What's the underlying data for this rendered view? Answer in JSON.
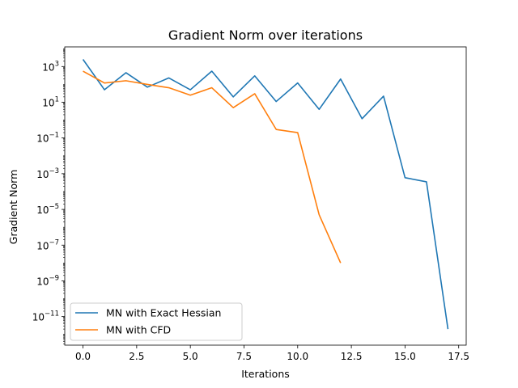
{
  "chart_data": {
    "type": "line",
    "title": "Gradient Norm  over iterations",
    "xlabel": "Iterations",
    "ylabel": "Gradient Norm",
    "yscale": "log",
    "xlim": [
      -0.85,
      17.85
    ],
    "ylim_log10": [
      -12.6,
      4.1
    ],
    "xticks": [
      0.0,
      2.5,
      5.0,
      7.5,
      10.0,
      12.5,
      15.0,
      17.5
    ],
    "xtick_labels": [
      "0.0",
      "2.5",
      "5.0",
      "7.5",
      "10.0",
      "12.5",
      "15.0",
      "17.5"
    ],
    "ytick_exponents": [
      3,
      1,
      -1,
      -3,
      -5,
      -7,
      -9,
      -11
    ],
    "ytick_base": "10",
    "grid": false,
    "legend_position": "lower-left",
    "series": [
      {
        "name": "MN with Exact Hessian",
        "color": "#1f77b4",
        "x": [
          0,
          1,
          2,
          3,
          4,
          5,
          6,
          7,
          8,
          9,
          10,
          11,
          12,
          13,
          14,
          15,
          16,
          17
        ],
        "y": [
          2500,
          50,
          450,
          70,
          230,
          50,
          550,
          20,
          300,
          11,
          120,
          4,
          200,
          1.2,
          22,
          0.0006,
          0.00035,
          2e-12
        ]
      },
      {
        "name": "MN with CFD",
        "color": "#ff7f0e",
        "x": [
          0,
          1,
          2,
          3,
          4,
          5,
          6,
          7,
          8,
          9,
          10,
          11,
          12
        ],
        "y": [
          550,
          120,
          160,
          100,
          65,
          25,
          65,
          5,
          30,
          0.3,
          0.2,
          5e-06,
          1e-08
        ]
      }
    ]
  }
}
